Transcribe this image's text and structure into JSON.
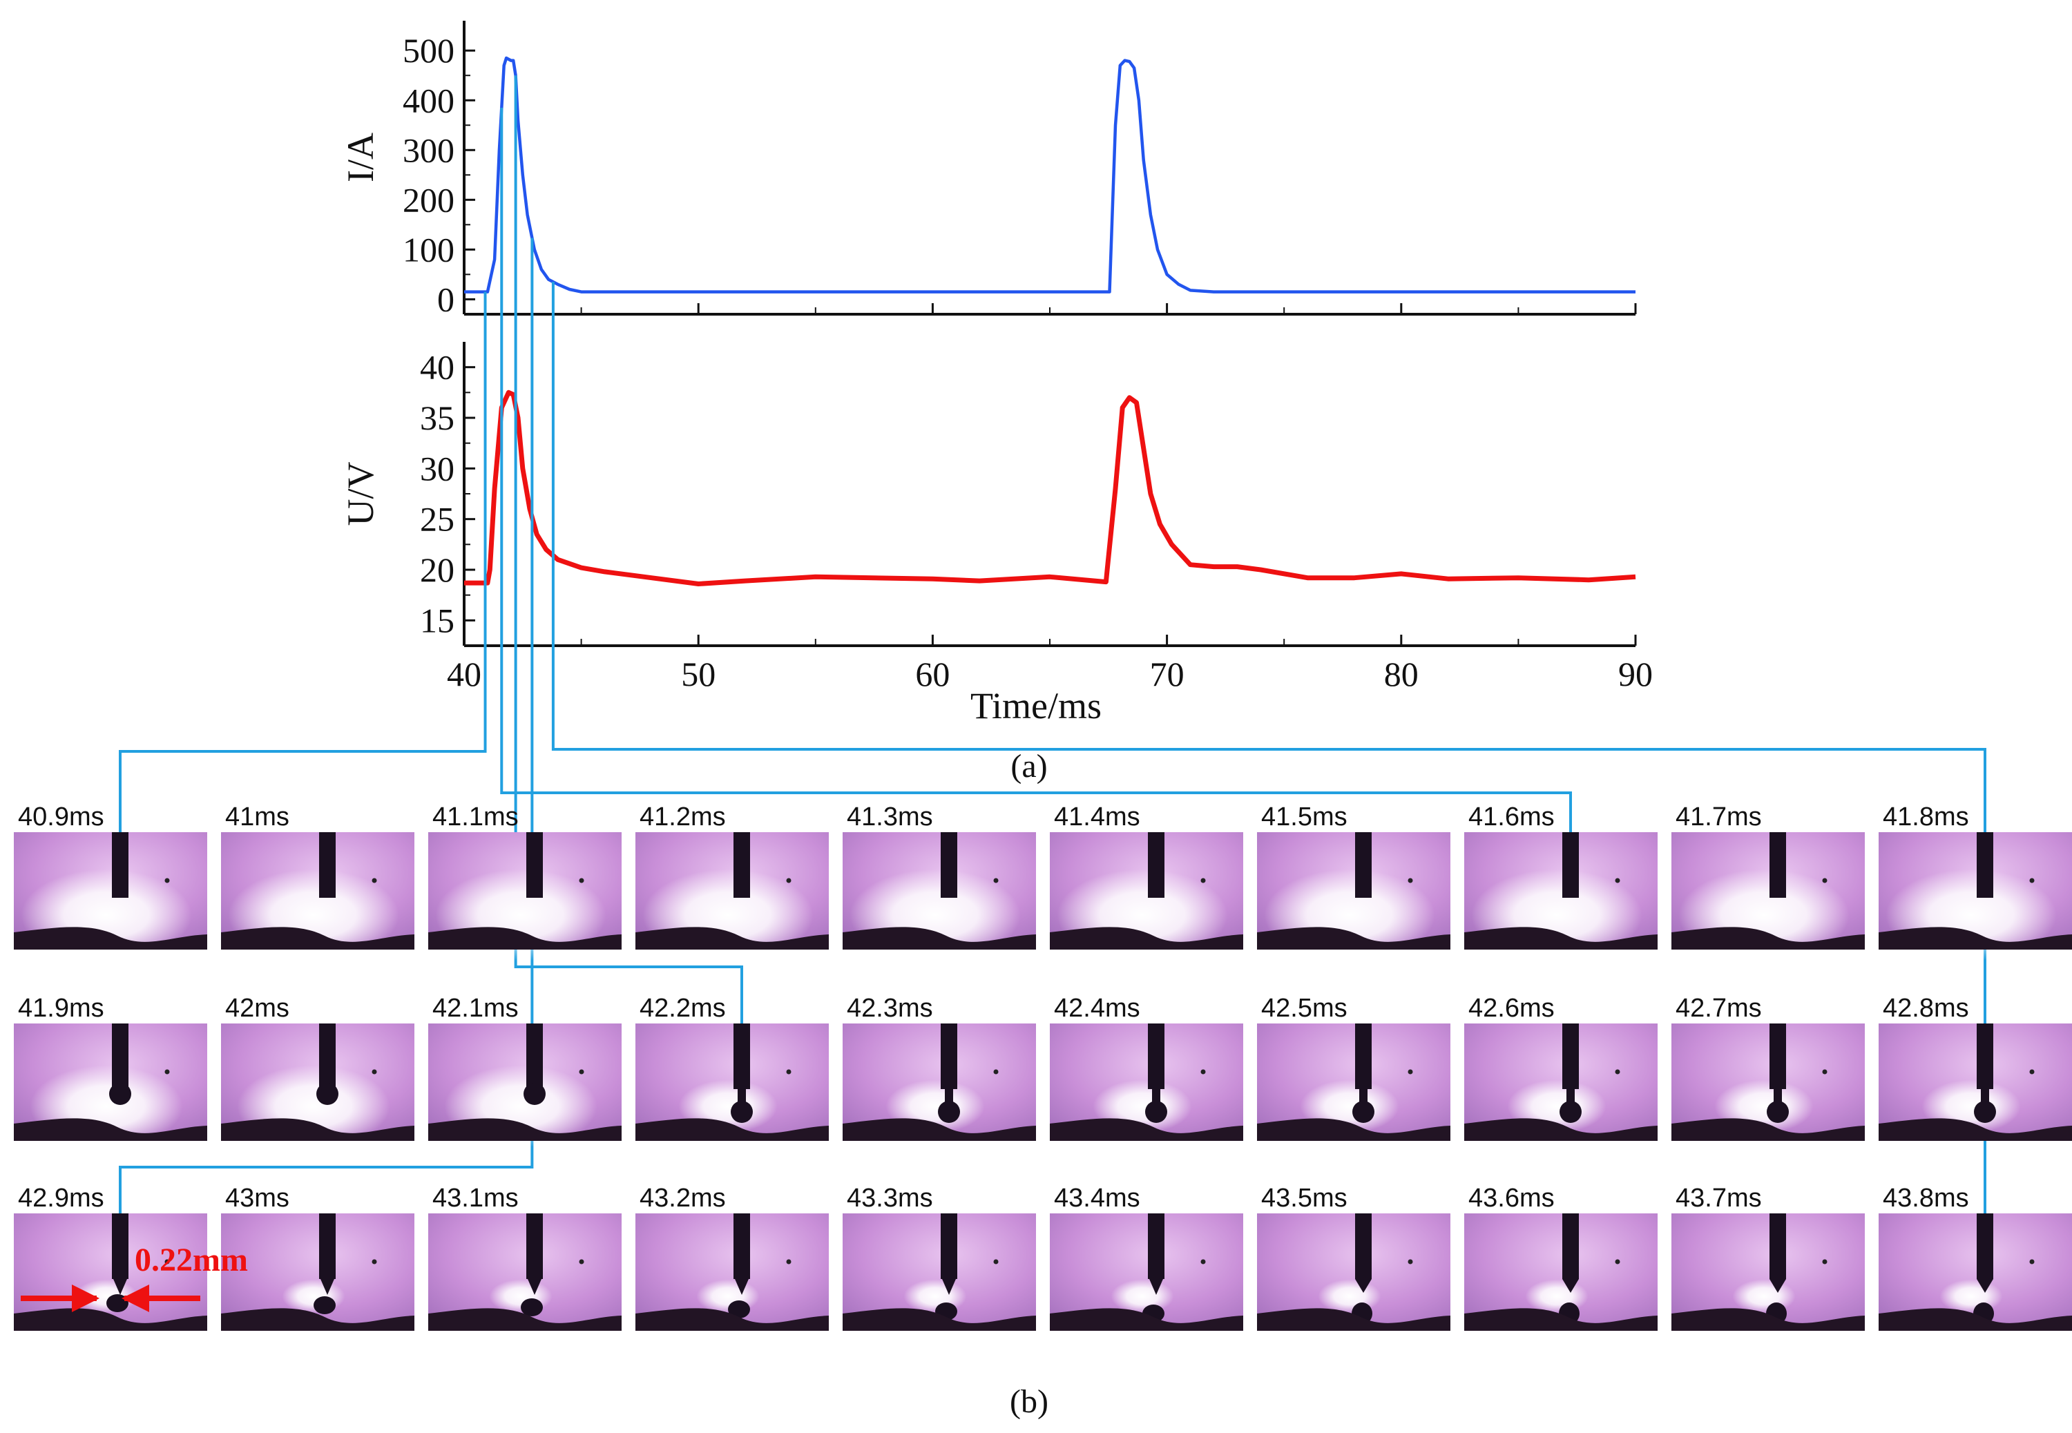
{
  "figure_labels": {
    "part_a": "(a)",
    "part_b": "(b)"
  },
  "colors": {
    "current": "#2255ee",
    "voltage": "#ee1111",
    "connector": "#22a0e0",
    "annotation": "#ee1111"
  },
  "chart_data": [
    {
      "type": "line",
      "ylabel": "I/A",
      "xlabel": "",
      "xlim": [
        40,
        90
      ],
      "ylim": [
        -30,
        560
      ],
      "yticks": [
        0,
        100,
        200,
        300,
        400,
        500
      ],
      "grid": false,
      "series": [
        {
          "name": "Current",
          "color": "#2255ee",
          "x": [
            40,
            41,
            41.3,
            41.5,
            41.7,
            41.8,
            42.0,
            42.1,
            42.2,
            42.3,
            42.5,
            42.7,
            43.0,
            43.3,
            43.6,
            44,
            44.5,
            45,
            46,
            50,
            60,
            67.5,
            67.55,
            67.8,
            68.0,
            68.2,
            68.4,
            68.6,
            68.8,
            69.0,
            69.3,
            69.6,
            70,
            70.5,
            71,
            72,
            80,
            90
          ],
          "y": [
            15,
            15,
            80,
            300,
            470,
            485,
            480,
            480,
            450,
            360,
            250,
            170,
            100,
            60,
            40,
            30,
            20,
            15,
            15,
            15,
            15,
            15,
            15,
            350,
            470,
            480,
            478,
            465,
            400,
            280,
            170,
            100,
            50,
            30,
            18,
            15,
            15,
            15
          ]
        }
      ]
    },
    {
      "type": "line",
      "ylabel": "U/V",
      "xlabel": "Time/ms",
      "xlim": [
        40,
        90
      ],
      "ylim": [
        12.5,
        42.5
      ],
      "yticks": [
        15,
        20,
        25,
        30,
        35,
        40
      ],
      "xticks": [
        40,
        50,
        60,
        70,
        80,
        90
      ],
      "grid": false,
      "series": [
        {
          "name": "Voltage",
          "color": "#ee1111",
          "x": [
            40,
            41.0,
            41.1,
            41.3,
            41.6,
            41.9,
            42.1,
            42.3,
            42.5,
            42.8,
            43.1,
            43.5,
            44,
            45,
            46,
            48,
            50,
            52,
            55,
            60,
            62,
            65,
            67.4,
            67.45,
            67.8,
            68.1,
            68.4,
            68.7,
            69.0,
            69.3,
            69.7,
            70.2,
            71,
            72,
            73,
            74,
            76,
            78,
            80,
            82,
            85,
            88,
            90
          ],
          "y": [
            18.7,
            18.7,
            20,
            28,
            36,
            37.5,
            37.3,
            35,
            30,
            26,
            23.5,
            22,
            21,
            20.2,
            19.8,
            19.2,
            18.6,
            18.9,
            19.3,
            19.1,
            18.9,
            19.3,
            18.8,
            20,
            28,
            36,
            37,
            36.5,
            32,
            27.5,
            24.5,
            22.5,
            20.5,
            20.3,
            20.3,
            20,
            19.2,
            19.2,
            19.6,
            19.1,
            19.2,
            19,
            19.3
          ]
        }
      ]
    }
  ],
  "frames": [
    {
      "label": "40.9ms",
      "t": 40.9,
      "droplet": "none"
    },
    {
      "label": "41ms",
      "t": 41.0,
      "droplet": "none"
    },
    {
      "label": "41.1ms",
      "t": 41.1,
      "droplet": "none"
    },
    {
      "label": "41.2ms",
      "t": 41.2,
      "droplet": "none"
    },
    {
      "label": "41.3ms",
      "t": 41.3,
      "droplet": "none"
    },
    {
      "label": "41.4ms",
      "t": 41.4,
      "droplet": "none"
    },
    {
      "label": "41.5ms",
      "t": 41.5,
      "droplet": "none"
    },
    {
      "label": "41.6ms",
      "t": 41.6,
      "droplet": "none"
    },
    {
      "label": "41.7ms",
      "t": 41.7,
      "droplet": "none"
    },
    {
      "label": "41.8ms",
      "t": 41.8,
      "droplet": "none"
    },
    {
      "label": "41.9ms",
      "t": 41.9,
      "droplet": "tip"
    },
    {
      "label": "42ms",
      "t": 42.0,
      "droplet": "tip"
    },
    {
      "label": "42.1ms",
      "t": 42.1,
      "droplet": "tip"
    },
    {
      "label": "42.2ms",
      "t": 42.2,
      "droplet": "neck"
    },
    {
      "label": "42.3ms",
      "t": 42.3,
      "droplet": "neck"
    },
    {
      "label": "42.4ms",
      "t": 42.4,
      "droplet": "neck"
    },
    {
      "label": "42.5ms",
      "t": 42.5,
      "droplet": "neck"
    },
    {
      "label": "42.6ms",
      "t": 42.6,
      "droplet": "neck"
    },
    {
      "label": "42.7ms",
      "t": 42.7,
      "droplet": "neck"
    },
    {
      "label": "42.8ms",
      "t": 42.8,
      "droplet": "neck"
    },
    {
      "label": "42.9ms",
      "t": 42.9,
      "droplet": "detached"
    },
    {
      "label": "43ms",
      "t": 43.0,
      "droplet": "detached"
    },
    {
      "label": "43.1ms",
      "t": 43.1,
      "droplet": "detached"
    },
    {
      "label": "43.2ms",
      "t": 43.2,
      "droplet": "detached"
    },
    {
      "label": "43.3ms",
      "t": 43.3,
      "droplet": "detached"
    },
    {
      "label": "43.4ms",
      "t": 43.4,
      "droplet": "detached"
    },
    {
      "label": "43.5ms",
      "t": 43.5,
      "droplet": "pool"
    },
    {
      "label": "43.6ms",
      "t": 43.6,
      "droplet": "pool"
    },
    {
      "label": "43.7ms",
      "t": 43.7,
      "droplet": "pool"
    },
    {
      "label": "43.8ms",
      "t": 43.8,
      "droplet": "pool"
    }
  ],
  "connectors": [
    {
      "t": 40.9,
      "frame": "40.9ms"
    },
    {
      "t": 41.6,
      "frame": "41.6ms"
    },
    {
      "t": 42.2,
      "frame": "42.2ms"
    },
    {
      "t": 42.9,
      "frame": "42.9ms"
    },
    {
      "t": 43.8,
      "frame": "43.8ms"
    }
  ],
  "annotation": {
    "text": "0.22mm",
    "frame": "42.9ms"
  }
}
